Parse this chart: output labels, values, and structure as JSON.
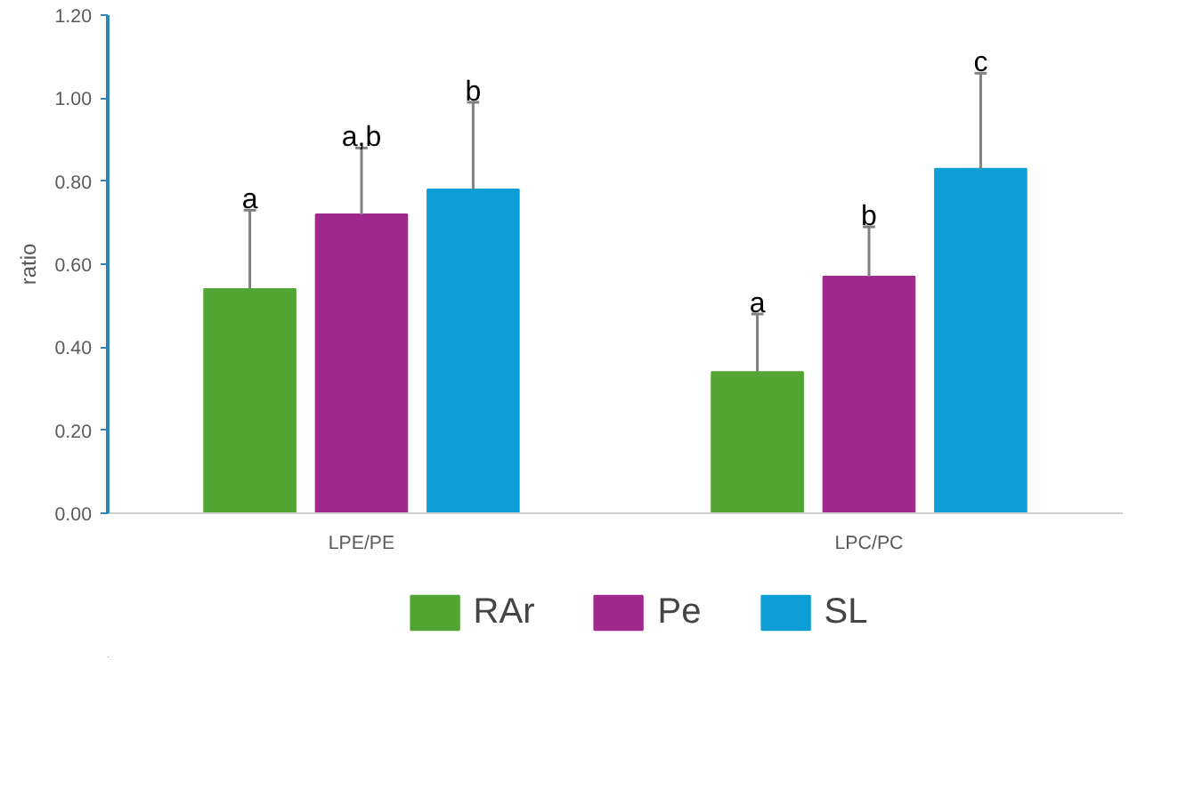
{
  "chart_data": {
    "type": "bar",
    "ylabel": "ratio",
    "categories": [
      "LPE/PE",
      "LPC/PC"
    ],
    "series": [
      {
        "name": "RAr",
        "color": "#52a532",
        "values": [
          0.54,
          0.34
        ],
        "errors": [
          [
            0.54,
            0.73
          ],
          [
            0.34,
            0.48
          ]
        ],
        "value_labels": [
          "a",
          "a"
        ]
      },
      {
        "name": "Pe",
        "color": "#a0298e",
        "values": [
          0.72,
          0.57
        ],
        "errors": [
          [
            0.72,
            0.88
          ],
          [
            0.57,
            0.69
          ]
        ],
        "value_labels": [
          "a,b",
          "b"
        ]
      },
      {
        "name": "SL",
        "color": "#0e9ed6",
        "values": [
          0.78,
          0.83
        ],
        "errors": [
          [
            0.78,
            0.99
          ],
          [
            0.83,
            1.06
          ]
        ],
        "value_labels": [
          "b",
          "c"
        ]
      }
    ],
    "ylim": [
      0,
      1.2
    ],
    "yticks": [
      {
        "value": 0,
        "label": "0.00"
      },
      {
        "value": 0.2,
        "label": "0.20"
      },
      {
        "value": 0.4,
        "label": "0.40"
      },
      {
        "value": 0.6,
        "label": "0.60"
      },
      {
        "value": 0.8,
        "label": "0.80"
      },
      {
        "value": 1.0,
        "label": "1.00"
      },
      {
        "value": 1.2,
        "label": "1.20"
      }
    ],
    "grid": false,
    "legend": "bottom"
  }
}
